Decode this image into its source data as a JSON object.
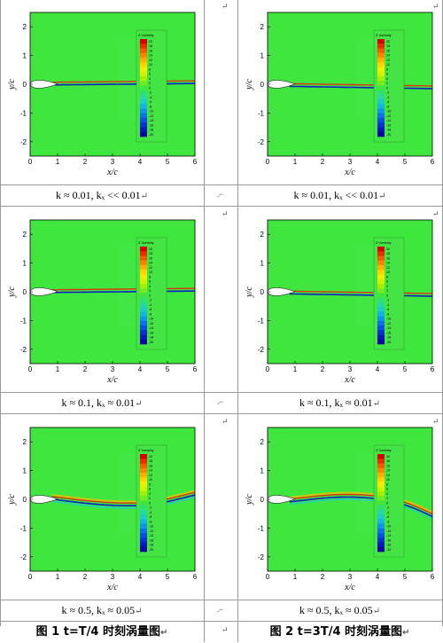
{
  "panels": [
    {
      "wake": "down",
      "caption": "k ≈ 0.01, kₓ << 0.01"
    },
    {
      "wake": "up",
      "caption": "k ≈ 0.01, kₓ << 0.01"
    },
    {
      "wake": "down2",
      "caption": "k ≈ 0.1, kₓ ≈ 0.01"
    },
    {
      "wake": "up2",
      "caption": "k ≈ 0.1, kₓ ≈ 0.01"
    },
    {
      "wake": "wave1",
      "caption": "k ≈ 0.5, kₓ ≈ 0.05"
    },
    {
      "wake": "wave2",
      "caption": "k ≈ 0.5, kₓ ≈ 0.05"
    }
  ],
  "axes": {
    "xlabel": "x/c",
    "ylabel": "y/c",
    "xticks": [
      "0",
      "1",
      "2",
      "3",
      "4",
      "5",
      "6"
    ],
    "yticks": [
      "2",
      "1",
      "0",
      "-1",
      "-2"
    ]
  },
  "legend": {
    "title": "Z Vorticity",
    "values": [
      "20",
      "18",
      "16",
      "14",
      "12",
      "10",
      "8",
      "6",
      "4",
      "2",
      "0",
      "-2",
      "-4",
      "-6",
      "-8",
      "-10",
      "-12",
      "-14",
      "-16",
      "-18",
      "-20"
    ]
  },
  "figure_captions": {
    "left": "图 1 t=T/4 时刻涡量图",
    "right": "图 2 t=3T/4 时刻涡量图"
  },
  "marks": {
    "return": "↵",
    "col_mark": ".⌐"
  },
  "colors": {
    "field": "#3ee63e",
    "grid": "#9a9a9a"
  }
}
